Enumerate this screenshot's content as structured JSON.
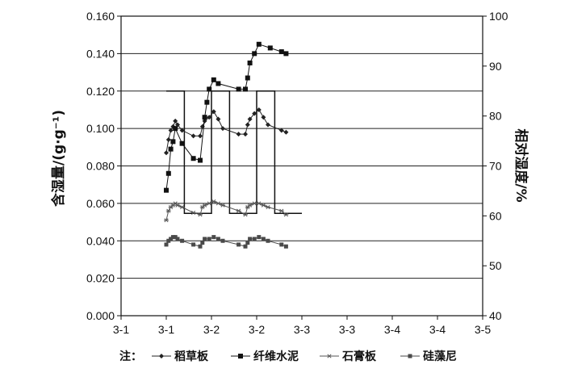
{
  "chart_data": {
    "type": "line",
    "x_tick_labels": [
      "3-1",
      "3-1",
      "3-2",
      "3-2",
      "3-3",
      "3-3",
      "3-4",
      "3-4",
      "3-5"
    ],
    "y_left": {
      "label": "含湿量/(g·g⁻¹)",
      "ylim": [
        0,
        0.16
      ],
      "ticks": [
        "0.000",
        "0.020",
        "0.040",
        "0.060",
        "0.080",
        "0.100",
        "0.120",
        "0.140",
        "0.160"
      ]
    },
    "y_right": {
      "label": "相对湿度/%",
      "ylim": [
        40,
        100
      ],
      "ticks": [
        "40",
        "50",
        "60",
        "70",
        "80",
        "90",
        "100"
      ]
    },
    "grid": true,
    "legend_prefix": "注：",
    "legend_position": "bottom",
    "relative_humidity": {
      "x": [
        1.0,
        1.4,
        1.4,
        2.0,
        2.0,
        2.4,
        2.4,
        3.0,
        3.0,
        3.4,
        3.4,
        4.0
      ],
      "y": [
        85,
        85,
        60.5,
        60.5,
        85,
        85,
        60.5,
        60.5,
        85,
        85,
        60.5,
        60.5
      ]
    },
    "series": [
      {
        "name": "稻草板",
        "marker": "diamond",
        "x": [
          1.0,
          1.05,
          1.1,
          1.15,
          1.2,
          1.25,
          1.35,
          1.6,
          1.75,
          1.8,
          1.85,
          1.95,
          2.05,
          2.15,
          2.25,
          2.6,
          2.75,
          2.8,
          2.85,
          2.95,
          3.05,
          3.15,
          3.25,
          3.55,
          3.65
        ],
        "y": [
          0.087,
          0.094,
          0.099,
          0.101,
          0.104,
          0.102,
          0.099,
          0.096,
          0.096,
          0.101,
          0.104,
          0.106,
          0.109,
          0.105,
          0.1,
          0.097,
          0.097,
          0.102,
          0.105,
          0.108,
          0.11,
          0.106,
          0.102,
          0.099,
          0.098
        ]
      },
      {
        "name": "纤维水泥",
        "marker": "square",
        "x": [
          1.0,
          1.05,
          1.1,
          1.15,
          1.2,
          1.35,
          1.6,
          1.75,
          1.85,
          1.9,
          1.95,
          2.05,
          2.15,
          2.6,
          2.75,
          2.8,
          2.85,
          2.95,
          3.05,
          3.3,
          3.55,
          3.65
        ],
        "y": [
          0.067,
          0.076,
          0.089,
          0.093,
          0.1,
          0.092,
          0.084,
          0.083,
          0.106,
          0.114,
          0.121,
          0.126,
          0.124,
          0.121,
          0.121,
          0.127,
          0.135,
          0.14,
          0.145,
          0.143,
          0.141,
          0.14
        ]
      },
      {
        "name": "石膏板",
        "marker": "star",
        "x": [
          1.0,
          1.05,
          1.1,
          1.15,
          1.2,
          1.25,
          1.35,
          1.6,
          1.75,
          1.8,
          1.85,
          1.95,
          2.05,
          2.15,
          2.25,
          2.6,
          2.75,
          2.8,
          2.85,
          2.95,
          3.05,
          3.15,
          3.25,
          3.55,
          3.65
        ],
        "y": [
          0.051,
          0.056,
          0.058,
          0.059,
          0.06,
          0.059,
          0.058,
          0.055,
          0.054,
          0.058,
          0.059,
          0.06,
          0.061,
          0.06,
          0.059,
          0.056,
          0.054,
          0.058,
          0.059,
          0.06,
          0.06,
          0.059,
          0.058,
          0.056,
          0.054
        ]
      },
      {
        "name": "硅藻尼",
        "marker": "square-small",
        "x": [
          1.0,
          1.05,
          1.1,
          1.15,
          1.2,
          1.25,
          1.35,
          1.6,
          1.75,
          1.8,
          1.85,
          1.95,
          2.05,
          2.15,
          2.25,
          2.6,
          2.75,
          2.8,
          2.85,
          2.95,
          3.05,
          3.15,
          3.25,
          3.55,
          3.65
        ],
        "y": [
          0.038,
          0.04,
          0.041,
          0.042,
          0.042,
          0.041,
          0.04,
          0.038,
          0.037,
          0.039,
          0.041,
          0.041,
          0.042,
          0.041,
          0.04,
          0.038,
          0.037,
          0.039,
          0.041,
          0.041,
          0.042,
          0.041,
          0.04,
          0.038,
          0.037
        ]
      }
    ]
  }
}
